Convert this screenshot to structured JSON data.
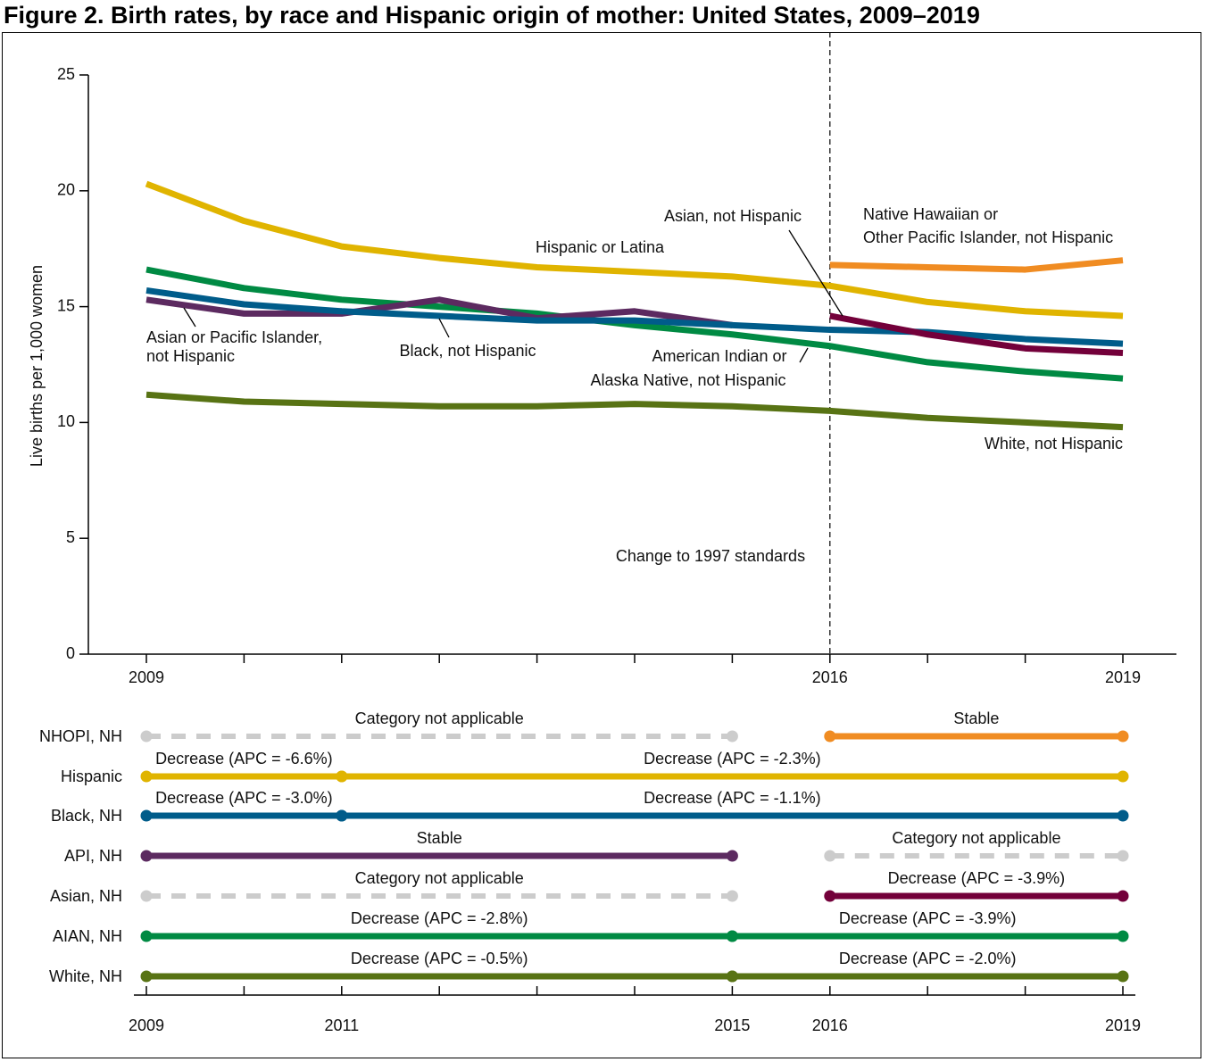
{
  "title": "Figure 2. Birth rates, by race and Hispanic origin of mother: United States, 2009–2019",
  "chart_data": [
    {
      "type": "line",
      "ylabel": "Live births per 1,000 women",
      "xlabel": "",
      "ylim": [
        0,
        25
      ],
      "yticks": [
        0,
        5,
        10,
        15,
        20,
        25
      ],
      "xlim": [
        2009,
        2019
      ],
      "xtick_labels": [
        "2009",
        "2016",
        "2019"
      ],
      "grid": false,
      "annotation": "Change to 1997 standards",
      "standards_change_year": 2016,
      "series": [
        {
          "key": "hispanic",
          "name": "Hispanic or Latina",
          "color": "#e0b400",
          "x": [
            2009,
            2010,
            2011,
            2012,
            2013,
            2014,
            2015,
            2016,
            2017,
            2018,
            2019
          ],
          "values": [
            20.3,
            18.7,
            17.6,
            17.1,
            16.7,
            16.5,
            16.3,
            15.9,
            15.2,
            14.8,
            14.6
          ]
        },
        {
          "key": "nhopi",
          "name": "Native Hawaiian or Other Pacific Islander, not Hispanic",
          "name_lines": [
            "Native Hawaiian or",
            "Other Pacific Islander, not Hispanic"
          ],
          "color": "#f08c22",
          "x": [
            2016,
            2017,
            2018,
            2019
          ],
          "values": [
            16.8,
            16.7,
            16.6,
            17.0
          ]
        },
        {
          "key": "aian",
          "name": "American Indian or Alaska Native, not Hispanic",
          "name_lines": [
            "American Indian or",
            "Alaska Native, not Hispanic"
          ],
          "color": "#008a43",
          "x": [
            2009,
            2010,
            2011,
            2012,
            2013,
            2014,
            2015,
            2016,
            2017,
            2018,
            2019
          ],
          "values": [
            16.6,
            15.8,
            15.3,
            15.0,
            14.7,
            14.2,
            13.8,
            13.3,
            12.6,
            12.2,
            11.9
          ]
        },
        {
          "key": "api",
          "name": "Asian or Pacific Islander, not Hispanic",
          "name_lines": [
            "Asian or Pacific Islander,",
            "not Hispanic"
          ],
          "color": "#5c2a60",
          "x": [
            2009,
            2010,
            2011,
            2012,
            2013,
            2014,
            2015
          ],
          "values": [
            15.3,
            14.7,
            14.7,
            15.3,
            14.5,
            14.8,
            14.2
          ]
        },
        {
          "key": "black",
          "name": "Black, not Hispanic",
          "color": "#005c8a",
          "x": [
            2009,
            2010,
            2011,
            2012,
            2013,
            2014,
            2015,
            2016,
            2017,
            2018,
            2019
          ],
          "values": [
            15.7,
            15.1,
            14.8,
            14.6,
            14.4,
            14.4,
            14.2,
            14.0,
            13.9,
            13.6,
            13.4
          ]
        },
        {
          "key": "asian",
          "name": "Asian, not Hispanic",
          "color": "#73003a",
          "x": [
            2016,
            2017,
            2018,
            2019
          ],
          "values": [
            14.6,
            13.8,
            13.2,
            13.0
          ]
        },
        {
          "key": "white",
          "name": "White, not Hispanic",
          "color": "#587314",
          "x": [
            2009,
            2010,
            2011,
            2012,
            2013,
            2014,
            2015,
            2016,
            2017,
            2018,
            2019
          ],
          "values": [
            11.2,
            10.9,
            10.8,
            10.7,
            10.7,
            10.8,
            10.7,
            10.5,
            10.2,
            10.0,
            9.8
          ]
        }
      ]
    },
    {
      "type": "segments",
      "xlim": [
        2009,
        2019
      ],
      "xtick_labels": [
        "2009",
        "2011",
        "2015",
        "2016",
        "2019"
      ],
      "na_color": "#cccccc",
      "rows": [
        {
          "label": "NHOPI, NH",
          "segments": [
            {
              "from": 2009,
              "to": 2015,
              "text": "Category not applicable",
              "na": true
            },
            {
              "from": 2016,
              "to": 2019,
              "text": "Stable",
              "color": "#f08c22"
            }
          ]
        },
        {
          "label": "Hispanic",
          "segments": [
            {
              "from": 2009,
              "to": 2011,
              "text": "Decrease (APC = -6.6%)",
              "color": "#e0b400"
            },
            {
              "from": 2011,
              "to": 2019,
              "text": "Decrease (APC = -2.3%)",
              "color": "#e0b400"
            }
          ]
        },
        {
          "label": "Black, NH",
          "segments": [
            {
              "from": 2009,
              "to": 2011,
              "text": "Decrease (APC = -3.0%)",
              "color": "#005c8a"
            },
            {
              "from": 2011,
              "to": 2019,
              "text": "Decrease (APC = -1.1%)",
              "color": "#005c8a"
            }
          ]
        },
        {
          "label": "API, NH",
          "segments": [
            {
              "from": 2009,
              "to": 2015,
              "text": "Stable",
              "color": "#5c2a60"
            },
            {
              "from": 2016,
              "to": 2019,
              "text": "Category not applicable",
              "na": true
            }
          ]
        },
        {
          "label": "Asian, NH",
          "segments": [
            {
              "from": 2009,
              "to": 2015,
              "text": "Category not applicable",
              "na": true
            },
            {
              "from": 2016,
              "to": 2019,
              "text": "Decrease (APC = -3.9%)",
              "color": "#73003a"
            }
          ]
        },
        {
          "label": "AIAN, NH",
          "segments": [
            {
              "from": 2009,
              "to": 2015,
              "text": "Decrease (APC = -2.8%)",
              "color": "#008a43"
            },
            {
              "from": 2015,
              "to": 2019,
              "text": "Decrease (APC = -3.9%)",
              "color": "#008a43"
            }
          ]
        },
        {
          "label": "White, NH",
          "segments": [
            {
              "from": 2009,
              "to": 2015,
              "text": "Decrease (APC = -0.5%)",
              "color": "#587314"
            },
            {
              "from": 2015,
              "to": 2019,
              "text": "Decrease (APC = -2.0%)",
              "color": "#587314"
            }
          ]
        }
      ]
    }
  ]
}
